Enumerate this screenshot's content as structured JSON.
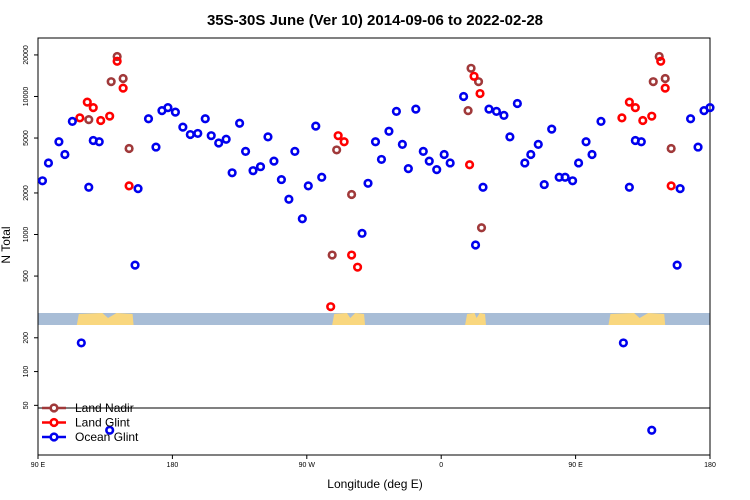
{
  "chart_data": {
    "type": "scatter",
    "title": "35S-30S June (Ver 10)   2014-09-06 to 2022-02-28",
    "xlabel": "Longitude (deg E)",
    "ylabel": "N Total",
    "x_ticks": [
      {
        "value": 90,
        "label": "90 E"
      },
      {
        "value": 180,
        "label": "180"
      },
      {
        "value": 270,
        "label": "90 W"
      },
      {
        "value": 360,
        "label": "0"
      },
      {
        "value": 450,
        "label": "90 E"
      },
      {
        "value": 540,
        "label": "180"
      }
    ],
    "xlim": [
      90,
      540
    ],
    "upper_y_ticks": [
      500,
      1000,
      2000,
      5000,
      10000,
      20000
    ],
    "upper_ylim": [
      270,
      24000
    ],
    "lower_y_ticks": [
      50,
      100,
      200
    ],
    "lower_ylim": [
      20,
      260
    ],
    "land_mask": [
      [
        116,
        154
      ],
      [
        287,
        309
      ],
      [
        376,
        390
      ],
      [
        472,
        510
      ]
    ],
    "colors": {
      "Land Nadir": "#a0393a",
      "Land Glint": "#ff0000",
      "Ocean Glint": "#0000ee",
      "ocean_band": "#a8bdd6",
      "land_band": "#f9d77f"
    },
    "legend": [
      "Land Nadir",
      "Land Glint",
      "Ocean Glint"
    ],
    "series": [
      {
        "name": "Land Nadir",
        "points": [
          {
            "x": 124,
            "y": 6800
          },
          {
            "x": 139,
            "y": 12800
          },
          {
            "x": 143,
            "y": 19500
          },
          {
            "x": 147,
            "y": 13500
          },
          {
            "x": 151,
            "y": 4200
          },
          {
            "x": 287,
            "y": 710
          },
          {
            "x": 290,
            "y": 4100
          },
          {
            "x": 300,
            "y": 1950
          },
          {
            "x": 378,
            "y": 7900
          },
          {
            "x": 380,
            "y": 16000
          },
          {
            "x": 385,
            "y": 12800
          },
          {
            "x": 387,
            "y": 1120
          },
          {
            "x": 502,
            "y": 12800
          },
          {
            "x": 506,
            "y": 19500
          },
          {
            "x": 510,
            "y": 13500
          },
          {
            "x": 514,
            "y": 4200
          }
        ]
      },
      {
        "name": "Land Glint",
        "points": [
          {
            "x": 118,
            "y": 7000
          },
          {
            "x": 123,
            "y": 9100
          },
          {
            "x": 127,
            "y": 8300
          },
          {
            "x": 132,
            "y": 6700
          },
          {
            "x": 138,
            "y": 7200
          },
          {
            "x": 143,
            "y": 18000
          },
          {
            "x": 147,
            "y": 11500
          },
          {
            "x": 151,
            "y": 2250
          },
          {
            "x": 286,
            "y": 300
          },
          {
            "x": 291,
            "y": 5200
          },
          {
            "x": 295,
            "y": 4700
          },
          {
            "x": 300,
            "y": 710
          },
          {
            "x": 304,
            "y": 580
          },
          {
            "x": 379,
            "y": 3200
          },
          {
            "x": 382,
            "y": 14000
          },
          {
            "x": 386,
            "y": 10500
          },
          {
            "x": 481,
            "y": 7000
          },
          {
            "x": 486,
            "y": 9100
          },
          {
            "x": 490,
            "y": 8300
          },
          {
            "x": 495,
            "y": 6700
          },
          {
            "x": 501,
            "y": 7200
          },
          {
            "x": 507,
            "y": 18000
          },
          {
            "x": 510,
            "y": 11500
          },
          {
            "x": 514,
            "y": 2250
          }
        ]
      },
      {
        "name": "Ocean Glint",
        "points": [
          {
            "x": 93,
            "y": 2450
          },
          {
            "x": 97,
            "y": 3300
          },
          {
            "x": 104,
            "y": 4700
          },
          {
            "x": 108,
            "y": 3800
          },
          {
            "x": 113,
            "y": 6600
          },
          {
            "x": 119,
            "y": 180
          },
          {
            "x": 124,
            "y": 2200
          },
          {
            "x": 127,
            "y": 4800
          },
          {
            "x": 131,
            "y": 4700
          },
          {
            "x": 138,
            "y": 30
          },
          {
            "x": 155,
            "y": 600
          },
          {
            "x": 157,
            "y": 2150
          },
          {
            "x": 164,
            "y": 6900
          },
          {
            "x": 169,
            "y": 4300
          },
          {
            "x": 173,
            "y": 7900
          },
          {
            "x": 177,
            "y": 8300
          },
          {
            "x": 182,
            "y": 7700
          },
          {
            "x": 187,
            "y": 6000
          },
          {
            "x": 192,
            "y": 5300
          },
          {
            "x": 197,
            "y": 5400
          },
          {
            "x": 202,
            "y": 6900
          },
          {
            "x": 206,
            "y": 5200
          },
          {
            "x": 211,
            "y": 4600
          },
          {
            "x": 216,
            "y": 4900
          },
          {
            "x": 220,
            "y": 2800
          },
          {
            "x": 225,
            "y": 6400
          },
          {
            "x": 229,
            "y": 4000
          },
          {
            "x": 234,
            "y": 2900
          },
          {
            "x": 239,
            "y": 3100
          },
          {
            "x": 244,
            "y": 5100
          },
          {
            "x": 248,
            "y": 3400
          },
          {
            "x": 253,
            "y": 2500
          },
          {
            "x": 258,
            "y": 1800
          },
          {
            "x": 262,
            "y": 4000
          },
          {
            "x": 267,
            "y": 1300
          },
          {
            "x": 271,
            "y": 2250
          },
          {
            "x": 276,
            "y": 6100
          },
          {
            "x": 280,
            "y": 2600
          },
          {
            "x": 307,
            "y": 1020
          },
          {
            "x": 311,
            "y": 2350
          },
          {
            "x": 316,
            "y": 4700
          },
          {
            "x": 320,
            "y": 3500
          },
          {
            "x": 325,
            "y": 5600
          },
          {
            "x": 330,
            "y": 7800
          },
          {
            "x": 334,
            "y": 4500
          },
          {
            "x": 338,
            "y": 3000
          },
          {
            "x": 343,
            "y": 8100
          },
          {
            "x": 348,
            "y": 4000
          },
          {
            "x": 352,
            "y": 3400
          },
          {
            "x": 357,
            "y": 2950
          },
          {
            "x": 362,
            "y": 3800
          },
          {
            "x": 366,
            "y": 3300
          },
          {
            "x": 375,
            "y": 10000
          },
          {
            "x": 383,
            "y": 840
          },
          {
            "x": 388,
            "y": 2200
          },
          {
            "x": 392,
            "y": 8100
          },
          {
            "x": 397,
            "y": 7800
          },
          {
            "x": 402,
            "y": 7300
          },
          {
            "x": 406,
            "y": 5100
          },
          {
            "x": 411,
            "y": 8900
          },
          {
            "x": 416,
            "y": 3300
          },
          {
            "x": 420,
            "y": 3800
          },
          {
            "x": 425,
            "y": 4500
          },
          {
            "x": 429,
            "y": 2300
          },
          {
            "x": 434,
            "y": 5800
          },
          {
            "x": 439,
            "y": 2600
          },
          {
            "x": 443,
            "y": 2600
          },
          {
            "x": 448,
            "y": 2450
          },
          {
            "x": 452,
            "y": 3300
          },
          {
            "x": 457,
            "y": 4700
          },
          {
            "x": 461,
            "y": 3800
          },
          {
            "x": 467,
            "y": 6600
          },
          {
            "x": 482,
            "y": 180
          },
          {
            "x": 486,
            "y": 2200
          },
          {
            "x": 490,
            "y": 4800
          },
          {
            "x": 494,
            "y": 4700
          },
          {
            "x": 501,
            "y": 30
          },
          {
            "x": 518,
            "y": 600
          },
          {
            "x": 520,
            "y": 2150
          },
          {
            "x": 527,
            "y": 6900
          },
          {
            "x": 532,
            "y": 4300
          },
          {
            "x": 536,
            "y": 7900
          },
          {
            "x": 540,
            "y": 8300
          }
        ]
      }
    ]
  }
}
